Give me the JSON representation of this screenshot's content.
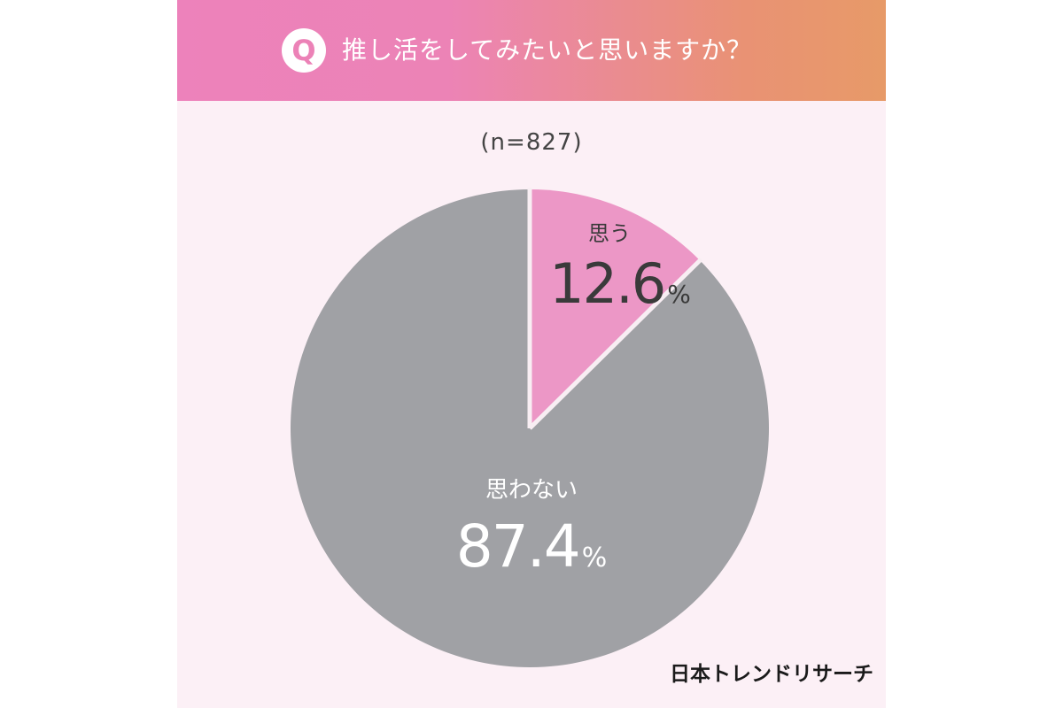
{
  "header": {
    "badge": "Q",
    "question": "推し活をしてみたいと思いますか？"
  },
  "sample_size": "(n=827)",
  "brand": "日本トレンドリサーチ",
  "colors": {
    "yes": "#ec97c6",
    "no": "#a0a1a5",
    "separator": "#f8eef3",
    "yes_text": "#3a3a3a",
    "no_text": "#ffffff"
  },
  "chart_data": {
    "type": "pie",
    "title": "推し活をしてみたいと思いますか？",
    "n_label": "(n=827)",
    "slices": [
      {
        "label": "思う",
        "value": 12.6,
        "display": "12.6",
        "unit": "%"
      },
      {
        "label": "思わない",
        "value": 87.4,
        "display": "87.4",
        "unit": "%"
      }
    ],
    "start_angle": "12 o'clock",
    "direction": "clockwise"
  }
}
